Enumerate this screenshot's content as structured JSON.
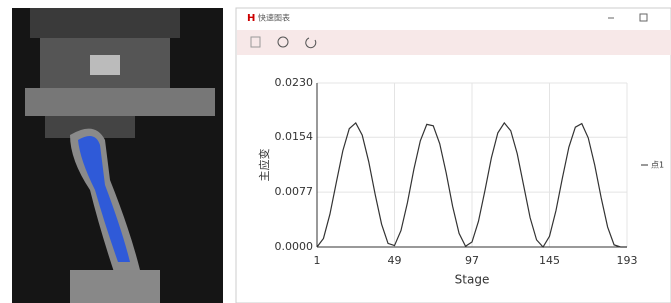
{
  "window": {
    "title": "快速图表"
  },
  "chart_data": {
    "type": "line",
    "x_label": "Stage",
    "y_label": "主应变",
    "x": [
      1,
      5,
      9,
      13,
      17,
      21,
      25,
      29,
      33,
      37,
      41,
      45,
      49,
      53,
      57,
      61,
      65,
      69,
      73,
      77,
      81,
      85,
      89,
      93,
      97,
      101,
      105,
      109,
      113,
      117,
      121,
      125,
      129,
      133,
      137,
      141,
      145,
      149,
      153,
      157,
      161,
      165,
      169,
      173,
      177,
      181,
      185,
      189,
      193
    ],
    "series": [
      {
        "name": "点1",
        "color": "#333333",
        "values": [
          0,
          0.0012,
          0.0046,
          0.0091,
          0.0135,
          0.0166,
          0.0174,
          0.0157,
          0.012,
          0.0074,
          0.0032,
          0.0005,
          0.0002,
          0.0023,
          0.0062,
          0.0109,
          0.0149,
          0.0172,
          0.017,
          0.0145,
          0.0104,
          0.0057,
          0.0019,
          0.0001,
          0.0007,
          0.0036,
          0.0079,
          0.0125,
          0.016,
          0.0174,
          0.0163,
          0.0131,
          0.0086,
          0.0041,
          0.001,
          0,
          0.0015,
          0.0051,
          0.0097,
          0.014,
          0.0168,
          0.0173,
          0.0153,
          0.0115,
          0.0069,
          0.0028,
          0.0003,
          0,
          0
        ]
      }
    ],
    "xlim": [
      1,
      193
    ],
    "xticks": [
      1,
      49,
      97,
      145,
      193
    ],
    "ylim": [
      0,
      0.023
    ],
    "yticks": [
      {
        "value": 0,
        "label": "0.0000"
      },
      0.0077,
      0.0154,
      {
        "value": 0.023,
        "label": "0.0230"
      }
    ],
    "grid": true,
    "legend": "right"
  }
}
